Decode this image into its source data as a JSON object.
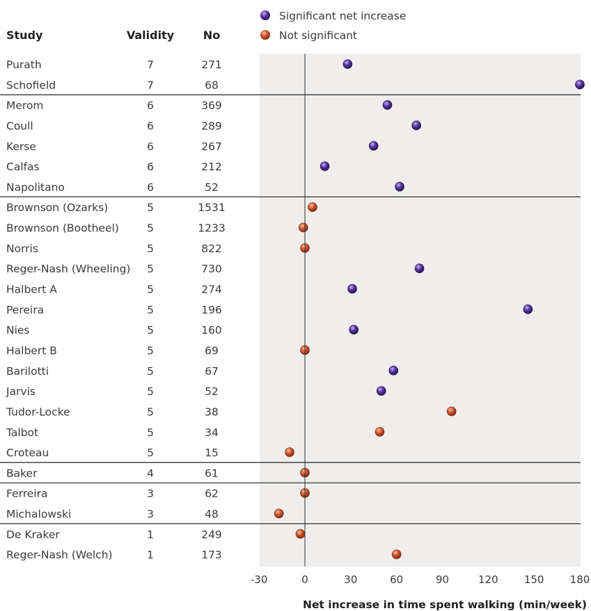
{
  "chart_data": {
    "type": "scatter",
    "headers": {
      "study": "Study",
      "validity": "Validity",
      "no": "No"
    },
    "xlabel": "Net increase in time spent walking (min/week)",
    "xlim": [
      -30,
      180
    ],
    "xticks": [
      -30,
      0,
      30,
      60,
      90,
      120,
      150,
      180
    ],
    "legend": {
      "placement": "top",
      "entries": [
        {
          "key": "sig",
          "label": "Significant net increase",
          "color": "#4b2a86"
        },
        {
          "key": "ns",
          "label": "Not significant",
          "color": "#c9502f"
        }
      ]
    },
    "grid": false,
    "rows": [
      {
        "study": "Purath",
        "validity": "7",
        "no": "271",
        "x": 28,
        "sig": "sig"
      },
      {
        "study": "Schofield",
        "validity": "7",
        "no": "68",
        "x": 180,
        "sig": "sig"
      },
      {
        "study": "Merom",
        "validity": "6",
        "no": "369",
        "x": 54,
        "sig": "sig"
      },
      {
        "study": "Coull",
        "validity": "6",
        "no": "289",
        "x": 73,
        "sig": "sig"
      },
      {
        "study": "Kerse",
        "validity": "6",
        "no": "267",
        "x": 45,
        "sig": "sig"
      },
      {
        "study": "Calfas",
        "validity": "6",
        "no": "212",
        "x": 13,
        "sig": "sig"
      },
      {
        "study": "Napolitano",
        "validity": "6",
        "no": "52",
        "x": 62,
        "sig": "sig"
      },
      {
        "study": "Brownson (Ozarks)",
        "validity": "5",
        "no": "1531",
        "x": 5,
        "sig": "ns"
      },
      {
        "study": "Brownson (Bootheel)",
        "validity": "5",
        "no": "1233",
        "x": -1,
        "sig": "ns"
      },
      {
        "study": "Norris",
        "validity": "5",
        "no": "822",
        "x": 0,
        "sig": "ns"
      },
      {
        "study": "Reger-Nash (Wheeling)",
        "validity": "5",
        "no": "730",
        "x": 75,
        "sig": "sig"
      },
      {
        "study": "Halbert A",
        "validity": "5",
        "no": "274",
        "x": 31,
        "sig": "sig"
      },
      {
        "study": "Pereira",
        "validity": "5",
        "no": "196",
        "x": 146,
        "sig": "sig"
      },
      {
        "study": "Nies",
        "validity": "5",
        "no": "160",
        "x": 32,
        "sig": "sig"
      },
      {
        "study": "Halbert B",
        "validity": "5",
        "no": "69",
        "x": 0,
        "sig": "ns"
      },
      {
        "study": "Barilotti",
        "validity": "5",
        "no": "67",
        "x": 58,
        "sig": "sig"
      },
      {
        "study": "Jarvis",
        "validity": "5",
        "no": "52",
        "x": 50,
        "sig": "sig"
      },
      {
        "study": "Tudor-Locke",
        "validity": "5",
        "no": "38",
        "x": 96,
        "sig": "ns"
      },
      {
        "study": "Talbot",
        "validity": "5",
        "no": "34",
        "x": 49,
        "sig": "ns"
      },
      {
        "study": "Croteau",
        "validity": "5",
        "no": "15",
        "x": -10,
        "sig": "ns"
      },
      {
        "study": "Baker",
        "validity": "4",
        "no": "61",
        "x": 0,
        "sig": "ns"
      },
      {
        "study": "Ferreira",
        "validity": "3",
        "no": "62",
        "x": 0,
        "sig": "ns"
      },
      {
        "study": "Michalowski",
        "validity": "3",
        "no": "48",
        "x": -17,
        "sig": "ns"
      },
      {
        "study": "De Kraker",
        "validity": "1",
        "no": "249",
        "x": -3,
        "sig": "ns"
      },
      {
        "study": "Reger-Nash (Welch)",
        "validity": "1",
        "no": "173",
        "x": 60,
        "sig": "ns"
      }
    ]
  }
}
